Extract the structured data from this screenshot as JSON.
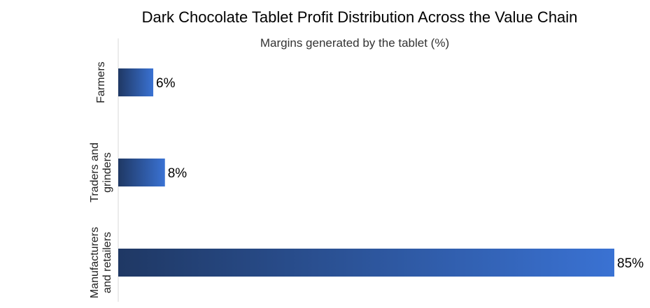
{
  "chart_data": {
    "type": "bar",
    "orientation": "horizontal",
    "title": "Dark Chocolate Tablet Profit Distribution Across the Value Chain",
    "subtitle": "Margins generated by the tablet (%)",
    "categories": [
      [
        "Farmers"
      ],
      [
        "Traders and",
        "grinders"
      ],
      [
        "Manufacturers",
        "and retailers"
      ]
    ],
    "values": [
      6,
      8,
      85
    ],
    "value_labels": [
      "6%",
      "8%",
      "85%"
    ],
    "unit": "%",
    "xlim": [
      0,
      85
    ],
    "grid": false,
    "colors": {
      "bar_dark": "#1f3864",
      "bar_light": "#3a72d3",
      "axis": "#d9d9d9"
    }
  }
}
